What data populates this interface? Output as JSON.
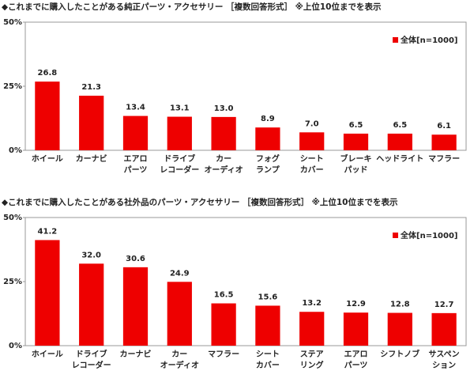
{
  "chart_data": [
    {
      "type": "bar",
      "title": "◆これまでに購入したことがある純正パーツ・アクセサリー ［複数回答形式］ ※上位10位までを表示",
      "categories": [
        [
          "ホイール"
        ],
        [
          "カーナビ"
        ],
        [
          "エアロ",
          "パーツ"
        ],
        [
          "ドライブ",
          "レコーダー"
        ],
        [
          "カー",
          "オーディオ"
        ],
        [
          "フォグ",
          "ランプ"
        ],
        [
          "シート",
          "カバー"
        ],
        [
          "ブレーキ",
          "パッド"
        ],
        [
          "ヘッドライト"
        ],
        [
          "マフラー"
        ]
      ],
      "series": [
        {
          "name": "全体[n=1000]",
          "color": "#ee0000",
          "values": [
            26.8,
            21.3,
            13.4,
            13.1,
            13.0,
            8.9,
            7.0,
            6.5,
            6.5,
            6.1
          ],
          "value_labels": [
            "26.8",
            "21.3",
            "13.4",
            "13.1",
            "13.0",
            "8.9",
            "7.0",
            "6.5",
            "6.5",
            "6.1"
          ]
        }
      ],
      "ylim": [
        0,
        50
      ],
      "yticks": [
        {
          "value": 0,
          "label": "0%"
        },
        {
          "value": 25,
          "label": "25%"
        },
        {
          "value": 50,
          "label": "50%"
        }
      ]
    },
    {
      "type": "bar",
      "title": "◆これまでに購入したことがある社外品のパーツ・アクセサリー ［複数回答形式］ ※上位10位までを表示",
      "categories": [
        [
          "ホイール"
        ],
        [
          "ドライブ",
          "レコーダー"
        ],
        [
          "カーナビ"
        ],
        [
          "カー",
          "オーディオ"
        ],
        [
          "マフラー"
        ],
        [
          "シート",
          "カバー"
        ],
        [
          "ステア",
          "リング"
        ],
        [
          "エアロ",
          "パーツ"
        ],
        [
          "シフトノブ"
        ],
        [
          "サスペン",
          "ション"
        ]
      ],
      "series": [
        {
          "name": "全体[n=1000]",
          "color": "#ee0000",
          "values": [
            41.2,
            32.0,
            30.6,
            24.9,
            16.5,
            15.6,
            13.2,
            12.9,
            12.8,
            12.7
          ],
          "value_labels": [
            "41.2",
            "32.0",
            "30.6",
            "24.9",
            "16.5",
            "15.6",
            "13.2",
            "12.9",
            "12.8",
            "12.7"
          ]
        }
      ],
      "ylim": [
        0,
        50
      ],
      "yticks": [
        {
          "value": 0,
          "label": "0%"
        },
        {
          "value": 25,
          "label": "25%"
        },
        {
          "value": 50,
          "label": "50%"
        }
      ]
    }
  ]
}
